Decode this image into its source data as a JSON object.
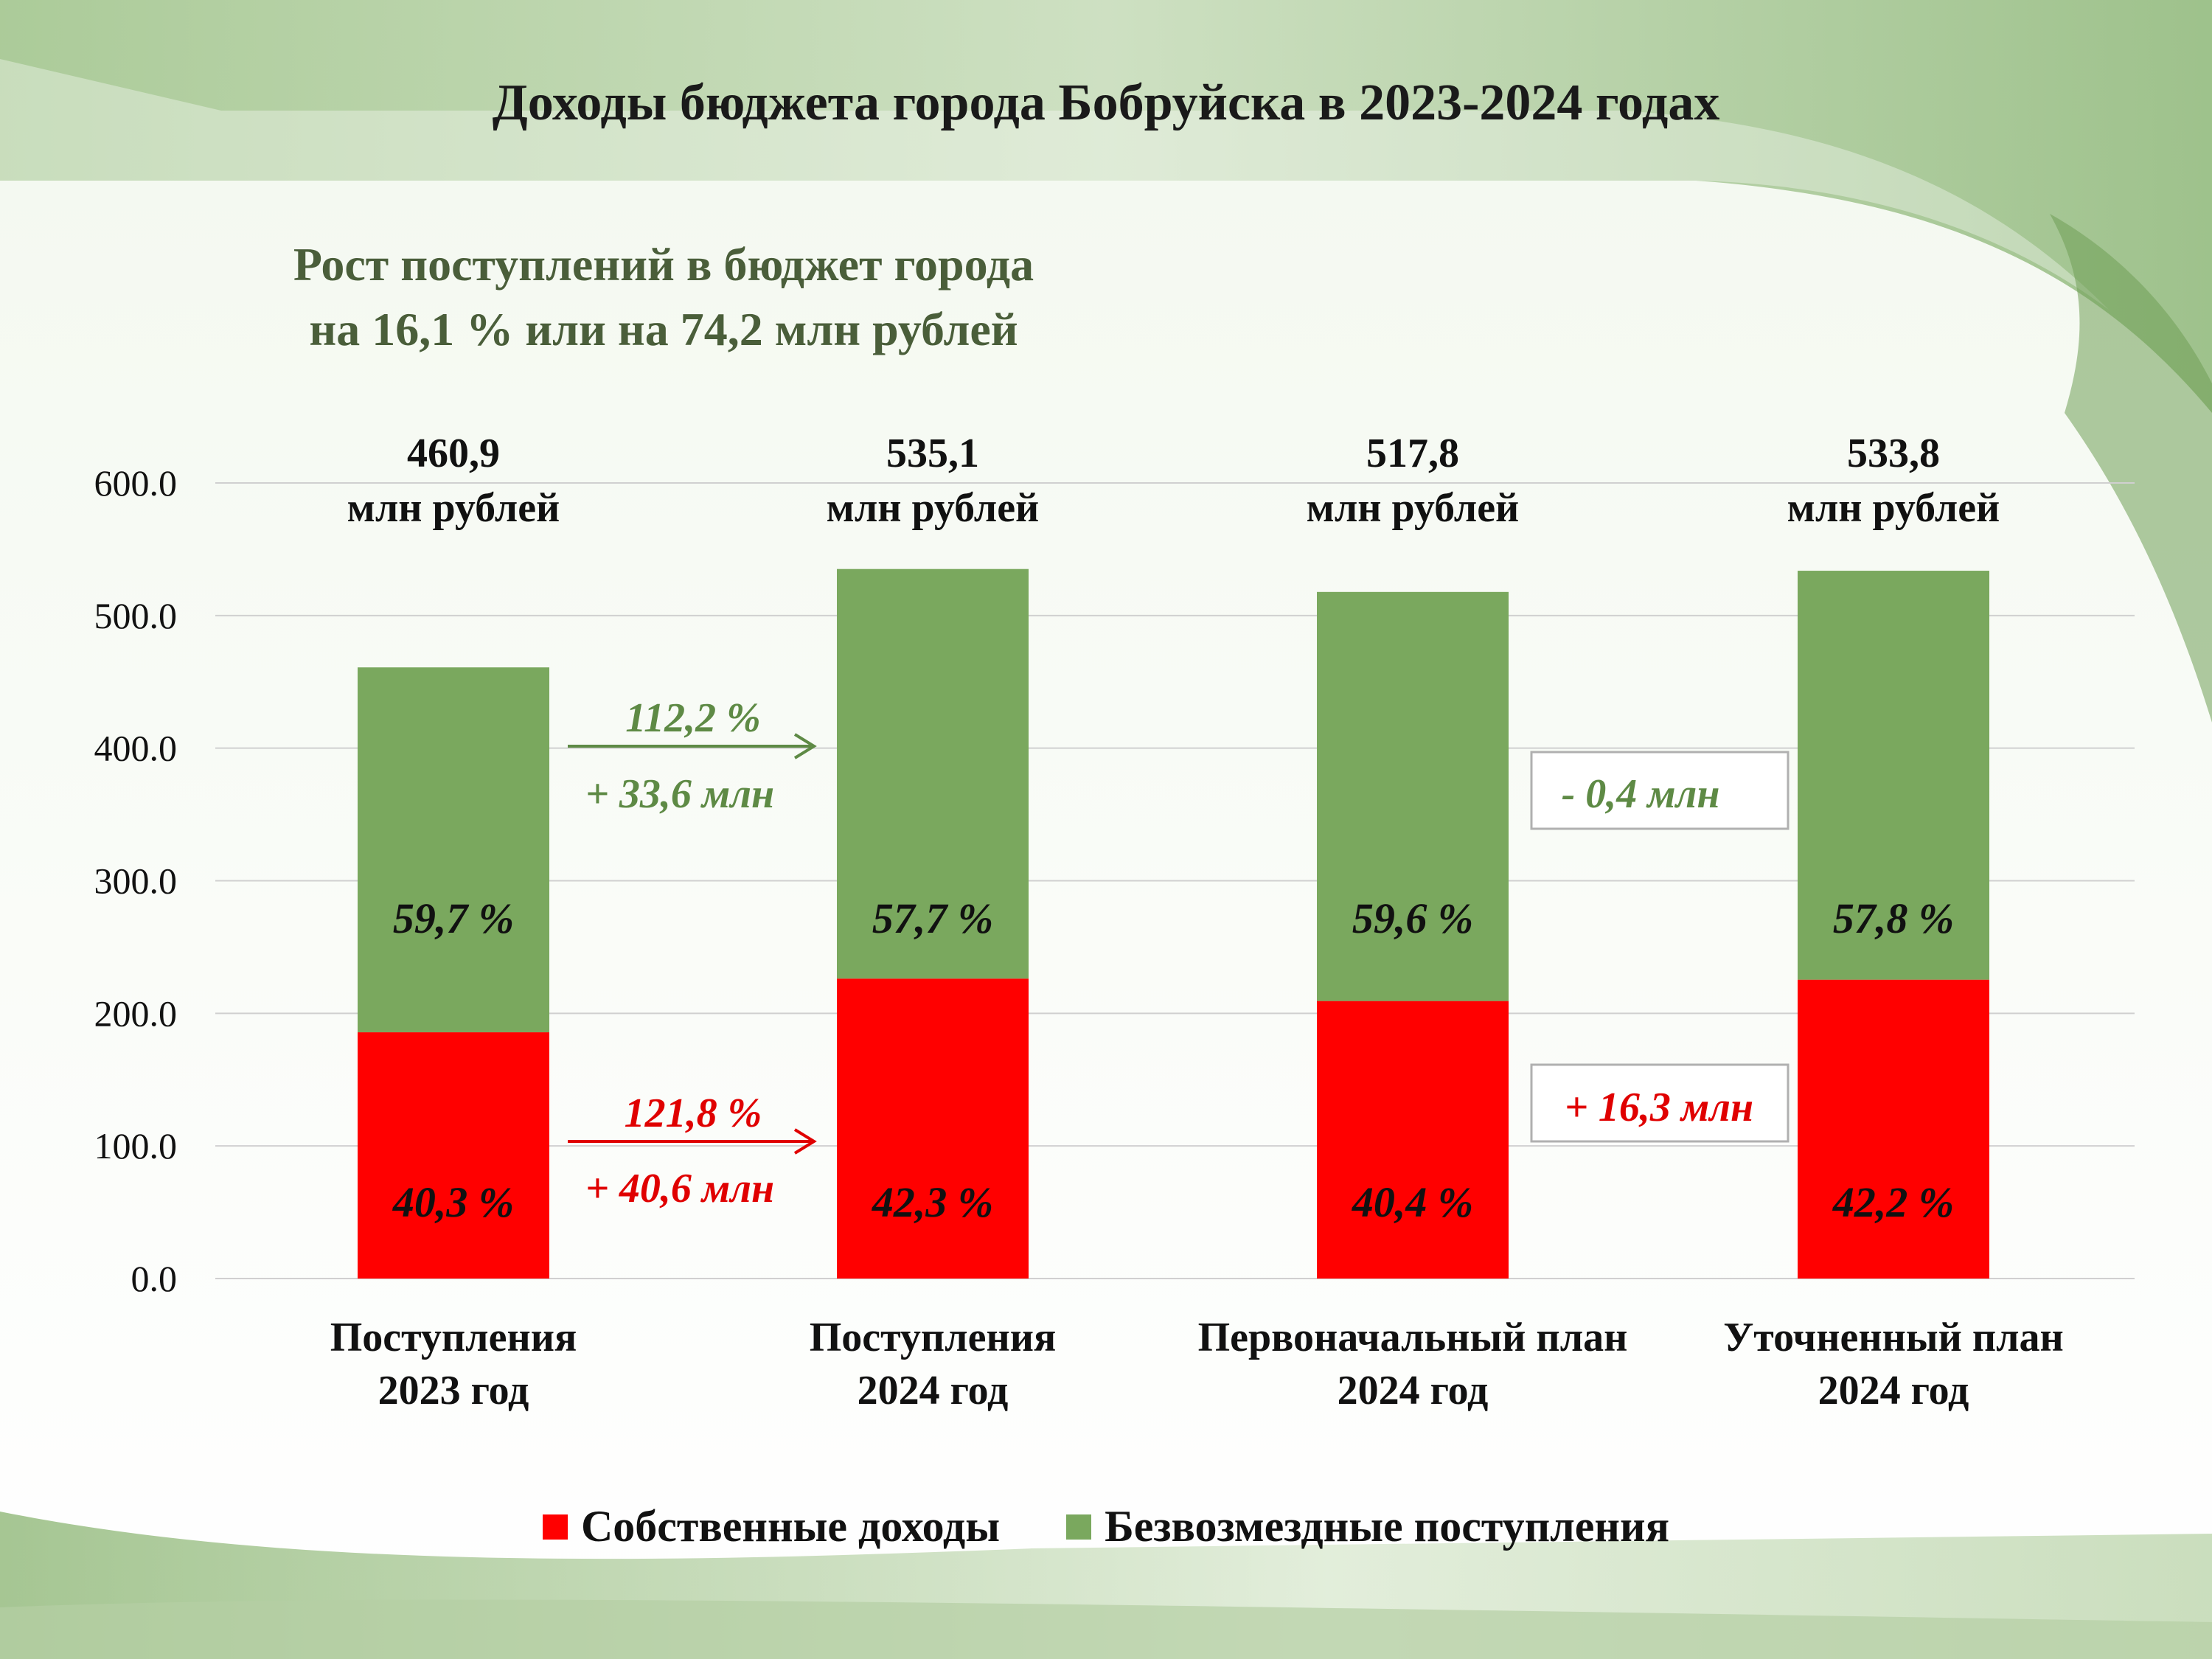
{
  "header": {
    "title": "Доходы бюджета города Бобруйска в 2023-2024 годах",
    "subtitle_line1": "Рост поступлений в бюджет города",
    "subtitle_line2": "на 16,1 % или на 74,2 млн рублей"
  },
  "colors": {
    "own": "#ff0000",
    "grant": "#7aa85e",
    "subtitle": "#4a5e3a",
    "grid": "#d0d0d0"
  },
  "chart_data": {
    "type": "bar",
    "stacked": true,
    "categories": [
      [
        "Поступления",
        "2023 год"
      ],
      [
        "Поступления",
        "2024 год"
      ],
      [
        "Первоначальный план",
        "2024 год"
      ],
      [
        "Уточненный план",
        "2024 год"
      ]
    ],
    "series": [
      {
        "name": "Собственные доходы",
        "color": "#ff0000",
        "values": [
          185.7,
          226.2,
          209.3,
          225.4
        ],
        "labels": [
          "40,3 %",
          "42,3 %",
          "40,4 %",
          "42,2 %"
        ]
      },
      {
        "name": "Безвозмездные поступления",
        "color": "#7aa85e",
        "values": [
          275.2,
          308.9,
          308.5,
          308.4
        ],
        "labels": [
          "59,7 %",
          "57,7 %",
          "59,6 %",
          "57,8 %"
        ]
      }
    ],
    "totals": [
      "460,9",
      "535,1",
      "517,8",
      "533,8"
    ],
    "total_unit": "млн рублей",
    "ylim": [
      0,
      600
    ],
    "yticks": [
      "0.0",
      "100.0",
      "200.0",
      "300.0",
      "400.0",
      "500.0",
      "600.0"
    ],
    "grid": true,
    "legend_position": "bottom",
    "annotations": {
      "grant_growth": {
        "percent": "112,2 %",
        "amount": "+ 33,6 млн",
        "color": "#5e8a45"
      },
      "own_growth": {
        "percent": "121,8 %",
        "amount": "+ 40,6 млн",
        "color": "#e00000"
      },
      "grant_plan_delta": {
        "text": "- 0,4 млн",
        "color": "#5e8a45"
      },
      "own_plan_delta": {
        "text": "+ 16,3 млн",
        "color": "#e00000"
      }
    }
  }
}
